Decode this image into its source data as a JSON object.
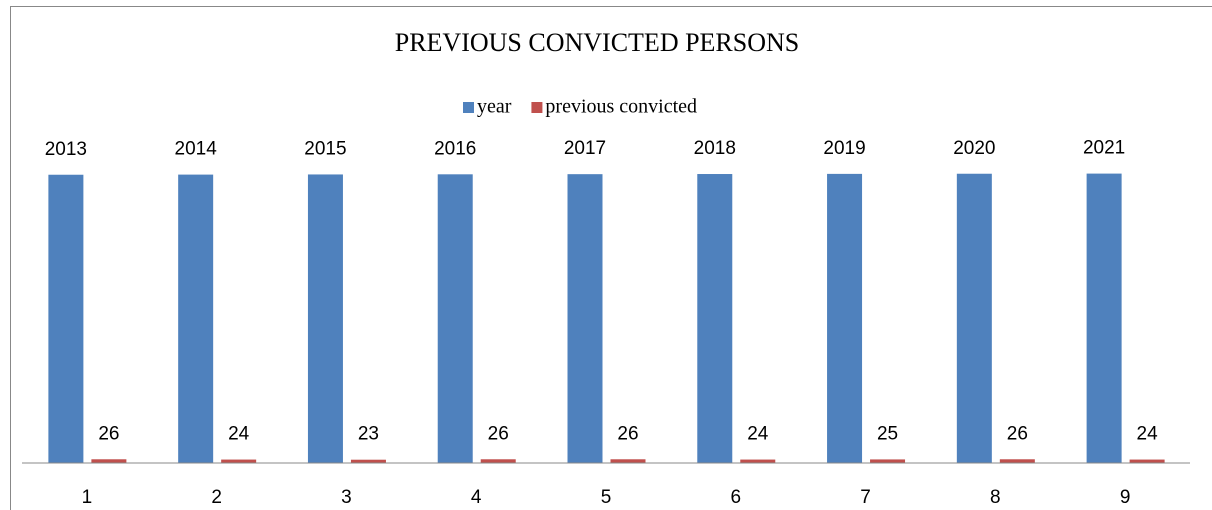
{
  "chart_data": {
    "type": "bar",
    "title": "PREVIOUS CONVICTED PERSONS",
    "categories": [
      "1",
      "2",
      "3",
      "4",
      "5",
      "6",
      "7",
      "8",
      "9"
    ],
    "series": [
      {
        "name": "year",
        "color": "#4f81bd",
        "values": [
          2013,
          2014,
          2015,
          2016,
          2017,
          2018,
          2019,
          2020,
          2021
        ]
      },
      {
        "name": "previous convicted",
        "color": "#c0504d",
        "values": [
          26,
          24,
          23,
          26,
          26,
          24,
          25,
          26,
          24
        ]
      }
    ],
    "ylim": [
      0,
      2500
    ],
    "grid": false,
    "legend": "top"
  }
}
